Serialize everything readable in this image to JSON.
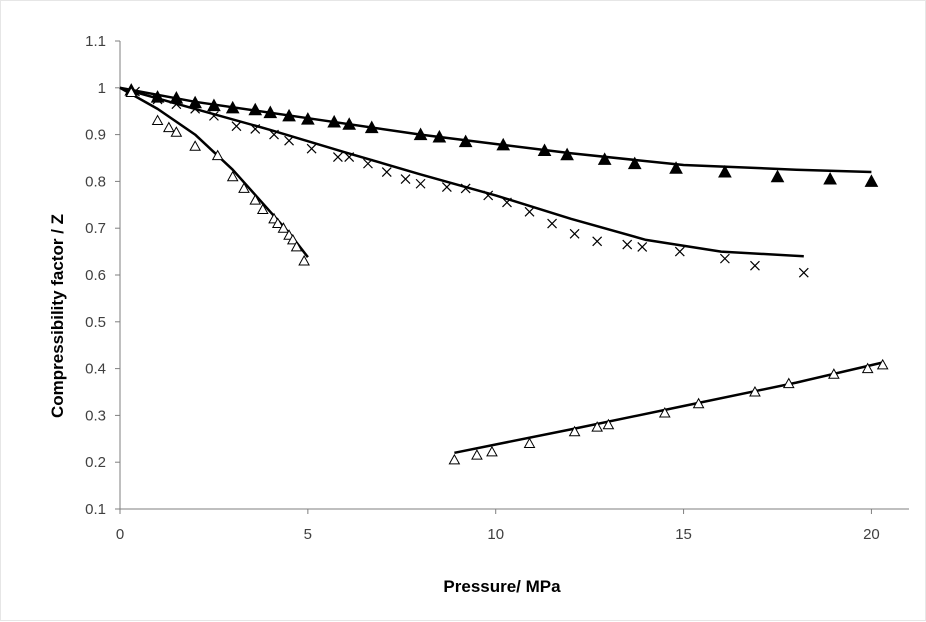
{
  "chart_data": {
    "type": "scatter",
    "title": "",
    "xlabel": "Pressure/ MPa",
    "ylabel": "Compressibility factor / Z",
    "xlim": [
      0,
      21
    ],
    "ylim": [
      0.1,
      1.1
    ],
    "xticks": [
      "0",
      "5",
      "10",
      "15",
      "20"
    ],
    "xtick_values": [
      0,
      5,
      10,
      15,
      20
    ],
    "yticks": [
      "0.1",
      "0.2",
      "0.3",
      "0.4",
      "0.5",
      "0.6",
      "0.7",
      "0.8",
      "0.9",
      "1",
      "1.1"
    ],
    "ytick_values": [
      0.1,
      0.2,
      0.3,
      0.4,
      0.5,
      0.6,
      0.7,
      0.8,
      0.9,
      1.0,
      1.1
    ],
    "grid": false,
    "legend": "none",
    "colors": {
      "marker": "#000000",
      "line": "#000000",
      "axis": "#7f7f7f"
    },
    "series": [
      {
        "marker": "filled-triangle",
        "points": [
          [
            0.3,
            0.995
          ],
          [
            1.0,
            0.98
          ],
          [
            1.5,
            0.978
          ],
          [
            2.0,
            0.968
          ],
          [
            2.5,
            0.962
          ],
          [
            3.0,
            0.957
          ],
          [
            3.6,
            0.953
          ],
          [
            4.0,
            0.947
          ],
          [
            4.5,
            0.94
          ],
          [
            5.0,
            0.933
          ],
          [
            5.7,
            0.927
          ],
          [
            6.1,
            0.922
          ],
          [
            6.7,
            0.915
          ],
          [
            8.0,
            0.9
          ],
          [
            8.5,
            0.895
          ],
          [
            9.2,
            0.885
          ],
          [
            10.2,
            0.878
          ],
          [
            11.3,
            0.866
          ],
          [
            11.9,
            0.857
          ],
          [
            12.9,
            0.847
          ],
          [
            13.7,
            0.838
          ],
          [
            14.8,
            0.828
          ],
          [
            16.1,
            0.82
          ],
          [
            17.5,
            0.81
          ],
          [
            18.9,
            0.805
          ],
          [
            20.0,
            0.8
          ]
        ]
      },
      {
        "marker": "cross",
        "points": [
          [
            0.4,
            0.992
          ],
          [
            1.0,
            0.975
          ],
          [
            1.5,
            0.965
          ],
          [
            2.0,
            0.955
          ],
          [
            2.5,
            0.94
          ],
          [
            3.1,
            0.918
          ],
          [
            3.6,
            0.912
          ],
          [
            4.1,
            0.9
          ],
          [
            4.5,
            0.887
          ],
          [
            5.1,
            0.87
          ],
          [
            5.8,
            0.852
          ],
          [
            6.1,
            0.852
          ],
          [
            6.6,
            0.838
          ],
          [
            7.1,
            0.82
          ],
          [
            7.6,
            0.805
          ],
          [
            8.0,
            0.795
          ],
          [
            8.7,
            0.788
          ],
          [
            9.2,
            0.785
          ],
          [
            9.8,
            0.77
          ],
          [
            10.3,
            0.755
          ],
          [
            10.9,
            0.735
          ],
          [
            11.5,
            0.71
          ],
          [
            12.1,
            0.688
          ],
          [
            12.7,
            0.672
          ],
          [
            13.5,
            0.665
          ],
          [
            13.9,
            0.66
          ],
          [
            14.9,
            0.65
          ],
          [
            16.1,
            0.635
          ],
          [
            16.9,
            0.62
          ],
          [
            18.2,
            0.605
          ]
        ]
      },
      {
        "marker": "open-triangle",
        "points": [
          [
            0.3,
            0.99
          ],
          [
            1.0,
            0.93
          ],
          [
            1.3,
            0.915
          ],
          [
            1.5,
            0.905
          ],
          [
            2.0,
            0.875
          ],
          [
            2.6,
            0.855
          ],
          [
            3.0,
            0.81
          ],
          [
            3.3,
            0.785
          ],
          [
            3.6,
            0.76
          ],
          [
            3.8,
            0.74
          ],
          [
            4.1,
            0.72
          ],
          [
            4.2,
            0.71
          ],
          [
            4.35,
            0.7
          ],
          [
            4.5,
            0.685
          ],
          [
            4.6,
            0.675
          ],
          [
            4.7,
            0.66
          ],
          [
            4.9,
            0.63
          ]
        ]
      },
      {
        "marker": "open-triangle",
        "points": [
          [
            8.9,
            0.205
          ],
          [
            9.5,
            0.215
          ],
          [
            9.9,
            0.222
          ],
          [
            10.9,
            0.24
          ],
          [
            12.1,
            0.265
          ],
          [
            12.7,
            0.275
          ],
          [
            13.0,
            0.28
          ],
          [
            14.5,
            0.305
          ],
          [
            15.4,
            0.325
          ],
          [
            16.9,
            0.35
          ],
          [
            17.8,
            0.368
          ],
          [
            19.0,
            0.388
          ],
          [
            19.9,
            0.4
          ],
          [
            20.3,
            0.408
          ]
        ]
      }
    ],
    "fit_lines": [
      [
        [
          0.0,
          1.0
        ],
        [
          2.0,
          0.97
        ],
        [
          5.0,
          0.935
        ],
        [
          8.0,
          0.9
        ],
        [
          10.0,
          0.88
        ],
        [
          12.0,
          0.86
        ],
        [
          15.0,
          0.835
        ],
        [
          18.0,
          0.825
        ],
        [
          20.0,
          0.82
        ]
      ],
      [
        [
          0.0,
          1.0
        ],
        [
          2.0,
          0.955
        ],
        [
          4.0,
          0.91
        ],
        [
          6.0,
          0.862
        ],
        [
          8.0,
          0.815
        ],
        [
          10.0,
          0.77
        ],
        [
          12.0,
          0.72
        ],
        [
          14.0,
          0.675
        ],
        [
          16.0,
          0.65
        ],
        [
          18.2,
          0.64
        ]
      ],
      [
        [
          0.0,
          1.0
        ],
        [
          1.0,
          0.955
        ],
        [
          2.0,
          0.9
        ],
        [
          3.0,
          0.825
        ],
        [
          4.0,
          0.735
        ],
        [
          4.5,
          0.69
        ],
        [
          5.0,
          0.638
        ]
      ],
      [
        [
          8.9,
          0.22
        ],
        [
          12.0,
          0.27
        ],
        [
          15.0,
          0.32
        ],
        [
          18.0,
          0.37
        ],
        [
          20.3,
          0.413
        ]
      ]
    ]
  }
}
